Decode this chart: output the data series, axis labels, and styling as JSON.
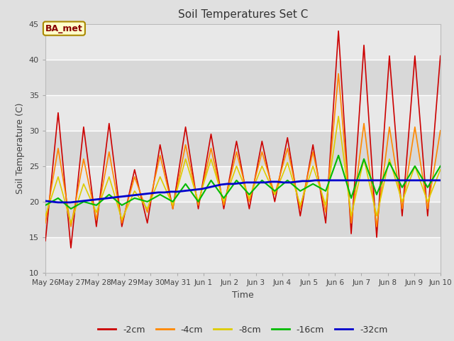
{
  "title": "Soil Temperatures Set C",
  "xlabel": "Time",
  "ylabel": "Soil Temperature (C)",
  "ylim": [
    10,
    45
  ],
  "yticks": [
    10,
    15,
    20,
    25,
    30,
    35,
    40,
    45
  ],
  "legend_label": "BA_met",
  "series_labels": [
    "-2cm",
    "-4cm",
    "-8cm",
    "-16cm",
    "-32cm"
  ],
  "series_colors": [
    "#cc0000",
    "#ff8800",
    "#ddcc00",
    "#00bb00",
    "#0000cc"
  ],
  "series_linewidths": [
    1.2,
    1.2,
    1.2,
    1.5,
    2.0
  ],
  "x_tick_labels": [
    "May 26",
    "May 27",
    "May 28",
    "May 29",
    "May 30",
    "May 31",
    "Jun 1",
    "Jun 2",
    "Jun 3",
    "Jun 4",
    "Jun 5",
    "Jun 6",
    "Jun 7",
    "Jun 8",
    "Jun 9",
    "Jun 10"
  ],
  "background_color": "#e0e0e0",
  "plot_bg_color_light": "#e8e8e8",
  "plot_bg_color_dark": "#d8d8d8",
  "grid_color": "#ffffff",
  "figsize": [
    6.4,
    4.8
  ],
  "dpi": 100,
  "peaks_2cm": [
    32.5,
    30.5,
    31.0,
    24.5,
    28.0,
    30.5,
    29.5,
    28.5,
    28.5,
    29.0,
    28.0,
    44.0,
    42.0,
    40.5,
    40.5,
    40.5
  ],
  "troughs_2cm": [
    14.5,
    13.5,
    16.5,
    16.5,
    17.0,
    19.0,
    19.0,
    19.0,
    19.0,
    20.0,
    18.0,
    17.0,
    15.5,
    15.0,
    18.0,
    18.0
  ],
  "peaks_4cm": [
    27.5,
    26.0,
    27.0,
    23.5,
    26.5,
    28.0,
    27.5,
    27.0,
    27.0,
    27.5,
    27.0,
    38.0,
    31.0,
    30.5,
    30.5,
    30.0
  ],
  "troughs_4cm": [
    17.0,
    16.5,
    17.5,
    17.0,
    18.5,
    19.0,
    19.5,
    19.5,
    20.0,
    21.0,
    19.0,
    18.5,
    17.0,
    16.5,
    19.0,
    19.0
  ],
  "peaks_8cm": [
    23.5,
    22.5,
    23.5,
    21.5,
    23.5,
    26.0,
    26.0,
    25.0,
    25.0,
    25.5,
    25.0,
    32.0,
    26.0,
    26.0,
    25.0,
    24.5
  ],
  "troughs_8cm": [
    18.0,
    17.0,
    18.5,
    17.5,
    19.0,
    19.5,
    20.0,
    20.0,
    20.5,
    21.0,
    19.5,
    19.5,
    18.0,
    18.0,
    20.0,
    20.0
  ],
  "peaks_16cm": [
    20.5,
    20.0,
    21.0,
    20.5,
    21.0,
    22.5,
    23.0,
    23.0,
    23.0,
    23.0,
    22.5,
    26.5,
    26.0,
    25.5,
    25.0,
    25.0
  ],
  "troughs_16cm": [
    19.5,
    19.0,
    19.5,
    19.5,
    20.0,
    20.0,
    20.0,
    20.5,
    21.0,
    21.5,
    21.5,
    21.5,
    20.5,
    21.0,
    22.0,
    22.0
  ],
  "y32": [
    20.1,
    20.0,
    19.9,
    19.9,
    19.9,
    20.0,
    20.1,
    20.2,
    20.3,
    20.4,
    20.5,
    20.6,
    20.7,
    20.8,
    20.9,
    21.0,
    21.1,
    21.2,
    21.3,
    21.3,
    21.4,
    21.4,
    21.5,
    21.6,
    21.7,
    21.8,
    22.0,
    22.2,
    22.4,
    22.5,
    22.5,
    22.6,
    22.7,
    22.7,
    22.7,
    22.7,
    22.8,
    22.8,
    22.7,
    22.7,
    22.8,
    22.9,
    22.9,
    23.0,
    23.0,
    23.0,
    23.0,
    23.0,
    23.0,
    23.0,
    23.0,
    23.0,
    23.0,
    23.0,
    23.0,
    23.0,
    23.0,
    23.0,
    23.0,
    23.0,
    23.0,
    23.0,
    23.0,
    23.0
  ]
}
